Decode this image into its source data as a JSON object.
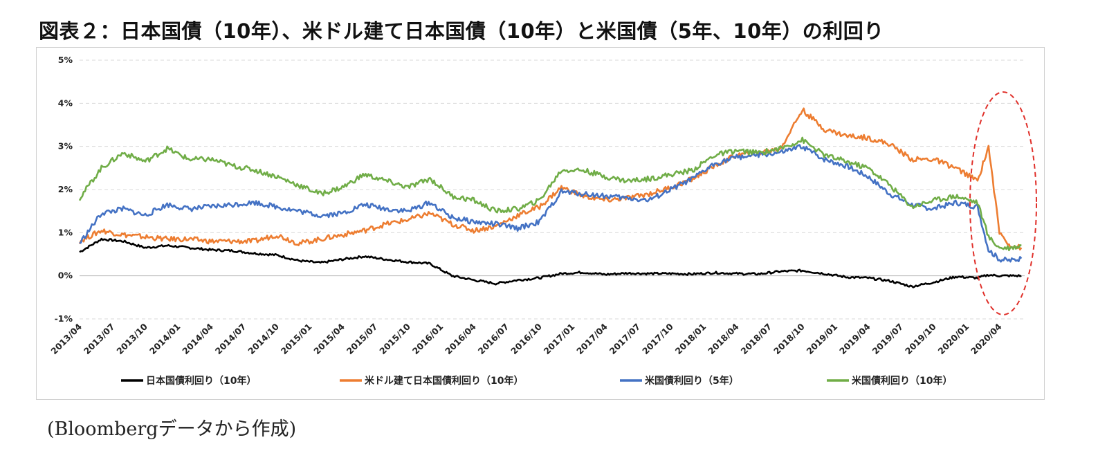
{
  "title": "図表２：日本国債（10年）、米ドル建て日本国債（10年）と米国債（5年、10年）の利回り",
  "source": "(Bloombergデータから作成)",
  "chart_data": {
    "type": "line",
    "title": "図表２：日本国債（10年）、米ドル建て日本国債（10年）と米国債（5年、10年）の利回り",
    "xlabel": "",
    "ylabel": "",
    "ylim": [
      -1,
      5
    ],
    "y_ticks": [
      "5%",
      "4%",
      "3%",
      "2%",
      "1%",
      "0%",
      "-1%"
    ],
    "x_ticks": [
      "2013/04",
      "2013/07",
      "2013/10",
      "2014/01",
      "2014/04",
      "2014/07",
      "2014/10",
      "2015/01",
      "2015/04",
      "2015/07",
      "2015/10",
      "2016/01",
      "2016/04",
      "2016/07",
      "2016/10",
      "2017/01",
      "2017/04",
      "2017/07",
      "2017/10",
      "2018/01",
      "2018/04",
      "2018/07",
      "2018/10",
      "2019/01",
      "2019/04",
      "2019/07",
      "2019/10",
      "2020/01",
      "2020/04"
    ],
    "grid": true,
    "legend": "bottom",
    "annotation": "red dashed ellipse around 2020/01–2020/06",
    "x": [
      "2013/04",
      "2013/06",
      "2013/08",
      "2013/10",
      "2013/12",
      "2014/02",
      "2014/04",
      "2014/06",
      "2014/08",
      "2014/10",
      "2014/12",
      "2015/02",
      "2015/04",
      "2015/06",
      "2015/08",
      "2015/10",
      "2015/12",
      "2016/02",
      "2016/04",
      "2016/06",
      "2016/08",
      "2016/10",
      "2016/12",
      "2017/02",
      "2017/04",
      "2017/06",
      "2017/08",
      "2017/10",
      "2017/12",
      "2018/02",
      "2018/04",
      "2018/06",
      "2018/08",
      "2018/10",
      "2018/12",
      "2019/02",
      "2019/04",
      "2019/06",
      "2019/08",
      "2019/10",
      "2019/12",
      "2020/02",
      "2020/03",
      "2020/04",
      "2020/05",
      "2020/06"
    ],
    "series": [
      {
        "name": "日本国債利回り（10年）",
        "color": "#000000",
        "values": [
          0.55,
          0.85,
          0.8,
          0.65,
          0.7,
          0.65,
          0.6,
          0.58,
          0.52,
          0.48,
          0.35,
          0.3,
          0.38,
          0.45,
          0.38,
          0.32,
          0.28,
          0.0,
          -0.1,
          -0.18,
          -0.1,
          -0.05,
          0.05,
          0.08,
          0.03,
          0.06,
          0.05,
          0.05,
          0.04,
          0.07,
          0.05,
          0.04,
          0.1,
          0.12,
          0.05,
          -0.03,
          -0.05,
          -0.12,
          -0.25,
          -0.15,
          -0.02,
          -0.05,
          0.02,
          0.0,
          0.0,
          0.0
        ]
      },
      {
        "name": "米ドル建て日本国債利回り（10年）",
        "color": "#ED7D31",
        "values": [
          0.8,
          1.05,
          0.95,
          0.9,
          0.85,
          0.85,
          0.8,
          0.8,
          0.8,
          0.95,
          0.75,
          0.85,
          0.95,
          1.05,
          1.2,
          1.3,
          1.45,
          1.2,
          1.05,
          1.15,
          1.4,
          1.6,
          2.05,
          1.85,
          1.75,
          1.8,
          1.9,
          2.05,
          2.25,
          2.55,
          2.8,
          2.85,
          2.95,
          3.85,
          3.4,
          3.25,
          3.2,
          3.05,
          2.7,
          2.7,
          2.5,
          2.2,
          3.0,
          1.0,
          0.7,
          0.65
        ]
      },
      {
        "name": "米国債利回り（5年）",
        "color": "#4472C4",
        "values": [
          0.75,
          1.45,
          1.55,
          1.4,
          1.65,
          1.55,
          1.6,
          1.65,
          1.7,
          1.6,
          1.5,
          1.4,
          1.45,
          1.65,
          1.55,
          1.5,
          1.7,
          1.35,
          1.25,
          1.2,
          1.1,
          1.25,
          1.95,
          1.9,
          1.85,
          1.8,
          1.75,
          2.0,
          2.25,
          2.6,
          2.75,
          2.8,
          2.85,
          3.0,
          2.7,
          2.55,
          2.3,
          1.9,
          1.65,
          1.55,
          1.7,
          1.6,
          0.6,
          0.38,
          0.35,
          0.4
        ]
      },
      {
        "name": "米国債利回り（10年）",
        "color": "#70AD47",
        "values": [
          1.8,
          2.5,
          2.85,
          2.65,
          2.95,
          2.7,
          2.7,
          2.55,
          2.45,
          2.3,
          2.1,
          1.9,
          2.05,
          2.35,
          2.2,
          2.05,
          2.25,
          1.85,
          1.75,
          1.5,
          1.55,
          1.75,
          2.45,
          2.45,
          2.3,
          2.2,
          2.25,
          2.35,
          2.45,
          2.8,
          2.9,
          2.85,
          2.95,
          3.15,
          2.8,
          2.65,
          2.5,
          2.1,
          1.6,
          1.75,
          1.85,
          1.7,
          0.9,
          0.65,
          0.65,
          0.7
        ]
      }
    ]
  }
}
